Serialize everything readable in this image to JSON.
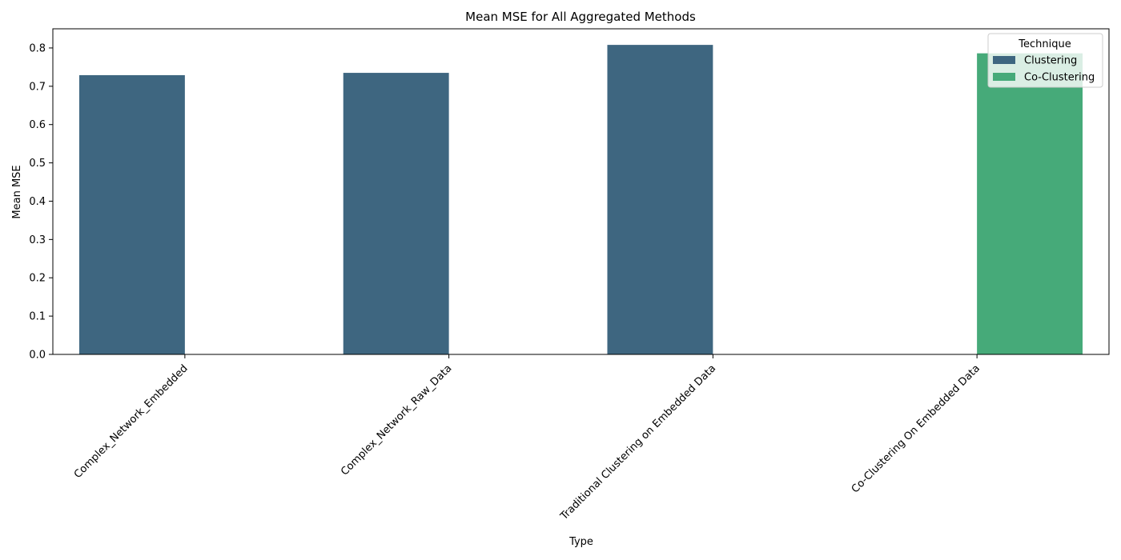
{
  "chart_data": {
    "type": "bar",
    "title": "Mean MSE for All Aggregated Methods",
    "xlabel": "Type",
    "ylabel": "Mean MSE",
    "categories": [
      "Complex_Network_Embedded",
      "Complex_Network_Raw_Data",
      "Traditional Clustering on Embedded Data",
      "Co-Clustering On Embedded Data"
    ],
    "series": [
      {
        "name": "Clustering",
        "color": "#3e6680",
        "values": [
          0.729,
          0.735,
          0.808,
          null
        ]
      },
      {
        "name": "Co-Clustering",
        "color": "#46aa79",
        "values": [
          null,
          null,
          null,
          0.786
        ]
      }
    ],
    "ylim": [
      0,
      0.85
    ],
    "yticks": [
      "0.0",
      "0.1",
      "0.2",
      "0.3",
      "0.4",
      "0.5",
      "0.6",
      "0.7",
      "0.8"
    ],
    "grid": false,
    "legend": {
      "title": "Technique",
      "placement": "top-right"
    }
  }
}
